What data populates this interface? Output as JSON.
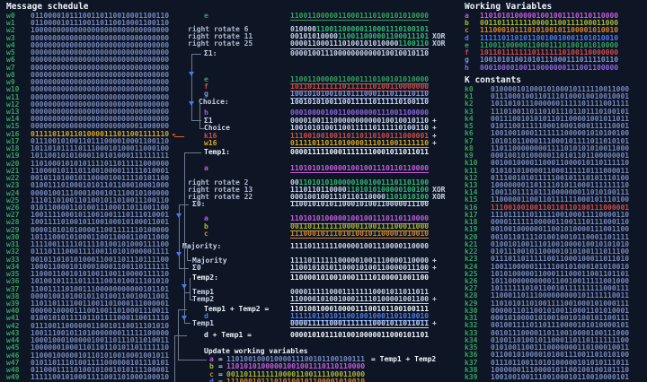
{
  "app": {
    "schedule_title": "Message schedule",
    "working_vars_title": "Working Variables",
    "k_title": "K constants",
    "marker": "►"
  },
  "colors": {
    "background": "#0e1626",
    "value_dim": "#7787bd",
    "value_plain": "#c9d4ea",
    "value_bright": "#eef3fb",
    "label_green": "#36a05d",
    "rotate_green": "#33b971",
    "yellow": "#d9a61f",
    "orange_marker": "#e0641f",
    "red": "#d24b48",
    "magenta": "#c55cd9",
    "yellow_green": "#a9b831",
    "orange": "#d8822b",
    "blue": "#4a7bf0",
    "periwinkle": "#7f93d6",
    "purple": "#8e64de",
    "connector": "#6e7890"
  },
  "schedule": [
    {
      "label": "w0",
      "value": "01100001011100110110010001100110"
    },
    {
      "label": "w1",
      "value": "01100001011100110110010001100110"
    },
    {
      "label": "w2",
      "value": "10000000000000000000000000000000"
    },
    {
      "label": "w3",
      "value": "00000000000000000000000000000000"
    },
    {
      "label": "w4",
      "value": "00000000000000000000000000000000"
    },
    {
      "label": "w5",
      "value": "00000000000000000000000000000000"
    },
    {
      "label": "w6",
      "value": "00000000000000000000000000000000"
    },
    {
      "label": "w7",
      "value": "00000000000000000000000000000000"
    },
    {
      "label": "w8",
      "value": "00000000000000000000000000000000"
    },
    {
      "label": "w9",
      "value": "00000000000000000000000000000000"
    },
    {
      "label": "w10",
      "value": "00000000000000000000000000000000"
    },
    {
      "label": "w11",
      "value": "00000000000000000000000000000000"
    },
    {
      "label": "w12",
      "value": "00000000000000000000000000000000"
    },
    {
      "label": "w13",
      "value": "00000000000000000000000000000000"
    },
    {
      "label": "w14",
      "value": "00000000000000000000000000000000"
    },
    {
      "label": "w15",
      "value": "00000000000000000000000001000000"
    },
    {
      "label": "w16",
      "value": "01111011011010000111011001111110",
      "highlight": true
    },
    {
      "label": "w17",
      "value": "01110010100110111000010001100110"
    },
    {
      "label": "w18",
      "value": "10110101111011100010100011000100"
    },
    {
      "label": "w19",
      "value": "10110010101000110101000111111111"
    },
    {
      "label": "w20",
      "value": "11010001010101111011011111000000"
    },
    {
      "label": "w21",
      "value": "11000010111011001000011111010001"
    },
    {
      "label": "w22",
      "value": "00101101001011000010011110101100"
    },
    {
      "label": "w23",
      "value": "01001110100010101101100010001000"
    },
    {
      "label": "w24",
      "value": "00001001110001000101110010100000"
    },
    {
      "label": "w25",
      "value": "11101101001101001011010011100110"
    },
    {
      "label": "w26",
      "value": "01011000011010011100011011001100"
    },
    {
      "label": "w27",
      "value": "10011110001011001001110111010001"
    },
    {
      "label": "w28",
      "value": "10011110100101100100010100011001"
    },
    {
      "label": "w29",
      "value": "00001010101000011001111110100000"
    },
    {
      "label": "w30",
      "value": "10111000101000110011000110011000"
    },
    {
      "label": "w31",
      "value": "11110011111011110100101000111100"
    },
    {
      "label": "w32",
      "value": "01110111000111100110101000001111"
    },
    {
      "label": "w33",
      "value": "00101101010100011001101110111100"
    },
    {
      "label": "w34",
      "value": "10001100010100010001100110111111"
    },
    {
      "label": "w35",
      "value": "11000110010101001100110000111110"
    },
    {
      "label": "w36",
      "value": "10100101111011111001010011101010"
    },
    {
      "label": "w37",
      "value": "11001111010011100000000000101101"
    },
    {
      "label": "w38",
      "value": "00001001010010110100110010011001"
    },
    {
      "label": "w39",
      "value": "11011011110011001101000111000001"
    },
    {
      "label": "w40",
      "value": "00000100001110010011010001110011"
    },
    {
      "label": "w41",
      "value": "01001010111101101111000110011110"
    },
    {
      "label": "w42",
      "value": "01110011000000110010110011101010"
    },
    {
      "label": "w43",
      "value": "10011100101101000000011111100000"
    },
    {
      "label": "w44",
      "value": "10001000100000100110111011010011"
    },
    {
      "label": "w45",
      "value": "10000001000110110110101101111110"
    },
    {
      "label": "w46",
      "value": "11000100000101101010010001001011"
    },
    {
      "label": "w47",
      "value": "01011011101001111000000101110101"
    },
    {
      "label": "w48",
      "value": "01100011110100101001010111100001"
    },
    {
      "label": "w49",
      "value": "11111001010001111001101000100010"
    }
  ],
  "working_vars": [
    {
      "label": "a",
      "value": "11010101000001001001110110110000",
      "color": "magenta"
    },
    {
      "label": "b",
      "value": "00110111111100001100111100011000",
      "color": "ygreen"
    },
    {
      "label": "c",
      "value": "11100010111010100101100001010010",
      "color": "orange"
    },
    {
      "label": "d",
      "value": "11111011010110010010001101010010",
      "color": "blue"
    },
    {
      "label": "e",
      "value": "11001100000110001110100101010000",
      "color": "green"
    },
    {
      "label": "f",
      "value": "10110111111101111110100110000000",
      "color": "red"
    },
    {
      "label": "g",
      "value": "10010101001010111000111011110110",
      "color": "blue2"
    },
    {
      "label": "h",
      "value": "00010000100110000000111001100000",
      "color": "purple"
    }
  ],
  "k_constants": [
    {
      "label": "k0",
      "value": "01000010100010100010111110011000"
    },
    {
      "label": "k1",
      "value": "01110001001101110100010010010001"
    },
    {
      "label": "k2",
      "value": "10110101110000001111101111001111"
    },
    {
      "label": "k3",
      "value": "11101001101101011101101110100101"
    },
    {
      "label": "k4",
      "value": "00111001010101101100001001011011"
    },
    {
      "label": "k5",
      "value": "01011001111100010001000111110001"
    },
    {
      "label": "k6",
      "value": "10010010001111111000001010100100"
    },
    {
      "label": "k7",
      "value": "10101011000111000101111011010101"
    },
    {
      "label": "k8",
      "value": "11011000000001111010101010011000"
    },
    {
      "label": "k9",
      "value": "00010010100000110101101100000001"
    },
    {
      "label": "k10",
      "value": "00100100001100011000010110111110"
    },
    {
      "label": "k11",
      "value": "01010101000011000111110111000011"
    },
    {
      "label": "k12",
      "value": "01110010101111100101110101110100"
    },
    {
      "label": "k13",
      "value": "10000000110111101011000111111110"
    },
    {
      "label": "k14",
      "value": "10011011110111000000011010100111"
    },
    {
      "label": "k15",
      "value": "11000001100110111111000101110100"
    },
    {
      "label": "k16",
      "value": "11100100100110110110100111000001",
      "highlight": true
    },
    {
      "label": "k17",
      "value": "11101111101111100100011110000110"
    },
    {
      "label": "k18",
      "value": "00001111110000011001110111000110"
    },
    {
      "label": "k19",
      "value": "00100100000011001010000111001100"
    },
    {
      "label": "k20",
      "value": "00101101111010010010110001101111"
    },
    {
      "label": "k21",
      "value": "01001010011101001000010010101010"
    },
    {
      "label": "k22",
      "value": "01011100101100001010100111011100"
    },
    {
      "label": "k23",
      "value": "01110110111110011000100011011010"
    },
    {
      "label": "k24",
      "value": "10011000001111100101000101010010"
    },
    {
      "label": "k25",
      "value": "10101000001100011100011001101101"
    },
    {
      "label": "k26",
      "value": "10110000000000110010011111001000"
    },
    {
      "label": "k27",
      "value": "10111111010110010111111111000111"
    },
    {
      "label": "k28",
      "value": "11000110111000000000101111110011"
    },
    {
      "label": "k29",
      "value": "11010101101001111001000101000111"
    },
    {
      "label": "k30",
      "value": "00000110110010100110001101010001"
    },
    {
      "label": "k31",
      "value": "00010100001010010010100101100111"
    },
    {
      "label": "k32",
      "value": "00100111101101110000101010000101"
    },
    {
      "label": "k33",
      "value": "00101110000110110010000100111000"
    },
    {
      "label": "k34",
      "value": "01001101001011000110110111111100"
    },
    {
      "label": "k35",
      "value": "01010011001110000000110100010011"
    },
    {
      "label": "k36",
      "value": "01100101000010100111001101010100"
    },
    {
      "label": "k37",
      "value": "01110110011010100000101010111011"
    },
    {
      "label": "k38",
      "value": "10000001110000101100100100101110"
    },
    {
      "label": "k39",
      "value": "10010010011100100010110010000101"
    }
  ],
  "ops": {
    "labels": {
      "e": "e",
      "f": "f",
      "g": "g",
      "h": "h",
      "a": "a",
      "b": "b",
      "c": "c",
      "d": "d",
      "rr6": "right rotate 6",
      "rr11": "right rotate 11",
      "rr25": "right rotate 25",
      "rr2": "right rotate 2",
      "rr13": "right rotate 13",
      "rr22": "right rotate 22",
      "xor": "XOR",
      "plus": "+",
      "eq": "=",
      "sigma1": "Σ1:",
      "sigma1_ref": "Σ1",
      "choice": "Choice:",
      "choice_ref": "Choice",
      "k16": "k16",
      "w16": "w16",
      "temp1": "Temp1:",
      "temp1_ref": "Temp1",
      "sigma0": "Σ0:",
      "sigma0_ref": "Σ0",
      "majority": "Majority:",
      "majority_ref": "Majority",
      "temp2": "Temp2:",
      "temp2_ref": "Temp2",
      "t1t2": "Temp1 + Temp2 =",
      "dt1": "d + Temp1 =",
      "update": "Update working variables",
      "t1t2_suffix": "= Temp1 + Temp2"
    },
    "values": {
      "e": "11001100000110001110100101010000",
      "f": "10110111111101111110100110000000",
      "g": "10010101001010111000111011110110",
      "h": "00010000100110000000111001100000",
      "a": "11010101000001001001110110110000",
      "b": "00110111111100001100111100011000",
      "c": "11100010111010100101100001010010",
      "d": "11111011010110010010001101010010",
      "rot6": "01000011001100000110001110100101",
      "rot11": "00101010000110011000001100011101",
      "rot25": "00001100011101001010100001100110",
      "sigma1": "00001001110000000000010010010110",
      "choice": "10010101001100111110111110100110",
      "k16v": "11100100100110110110100111000001",
      "w16v": "01111011011010000111011001111110",
      "temp1": "00001111100011111110001011011011",
      "rot2": "00110101010000010010011101101100",
      "rot13": "11101101100001101010100000100100",
      "rot22": "00010010011101101100001101010100",
      "sigma0": "11001010101100010100110000011100",
      "majority": "11110111111000001001110000110000",
      "temp2": "11000010100100011110100001001100",
      "t1t2": "11010010001000011100101100100111",
      "dt1": "00001010111010010000011000101101",
      "upd_a": "11010010001000011100101100100111",
      "upd_b": "11010101000001001001110110110000",
      "upd_c": "00110111111100001100111100011000",
      "upd_d": "11100010111010100101100001010010"
    }
  }
}
